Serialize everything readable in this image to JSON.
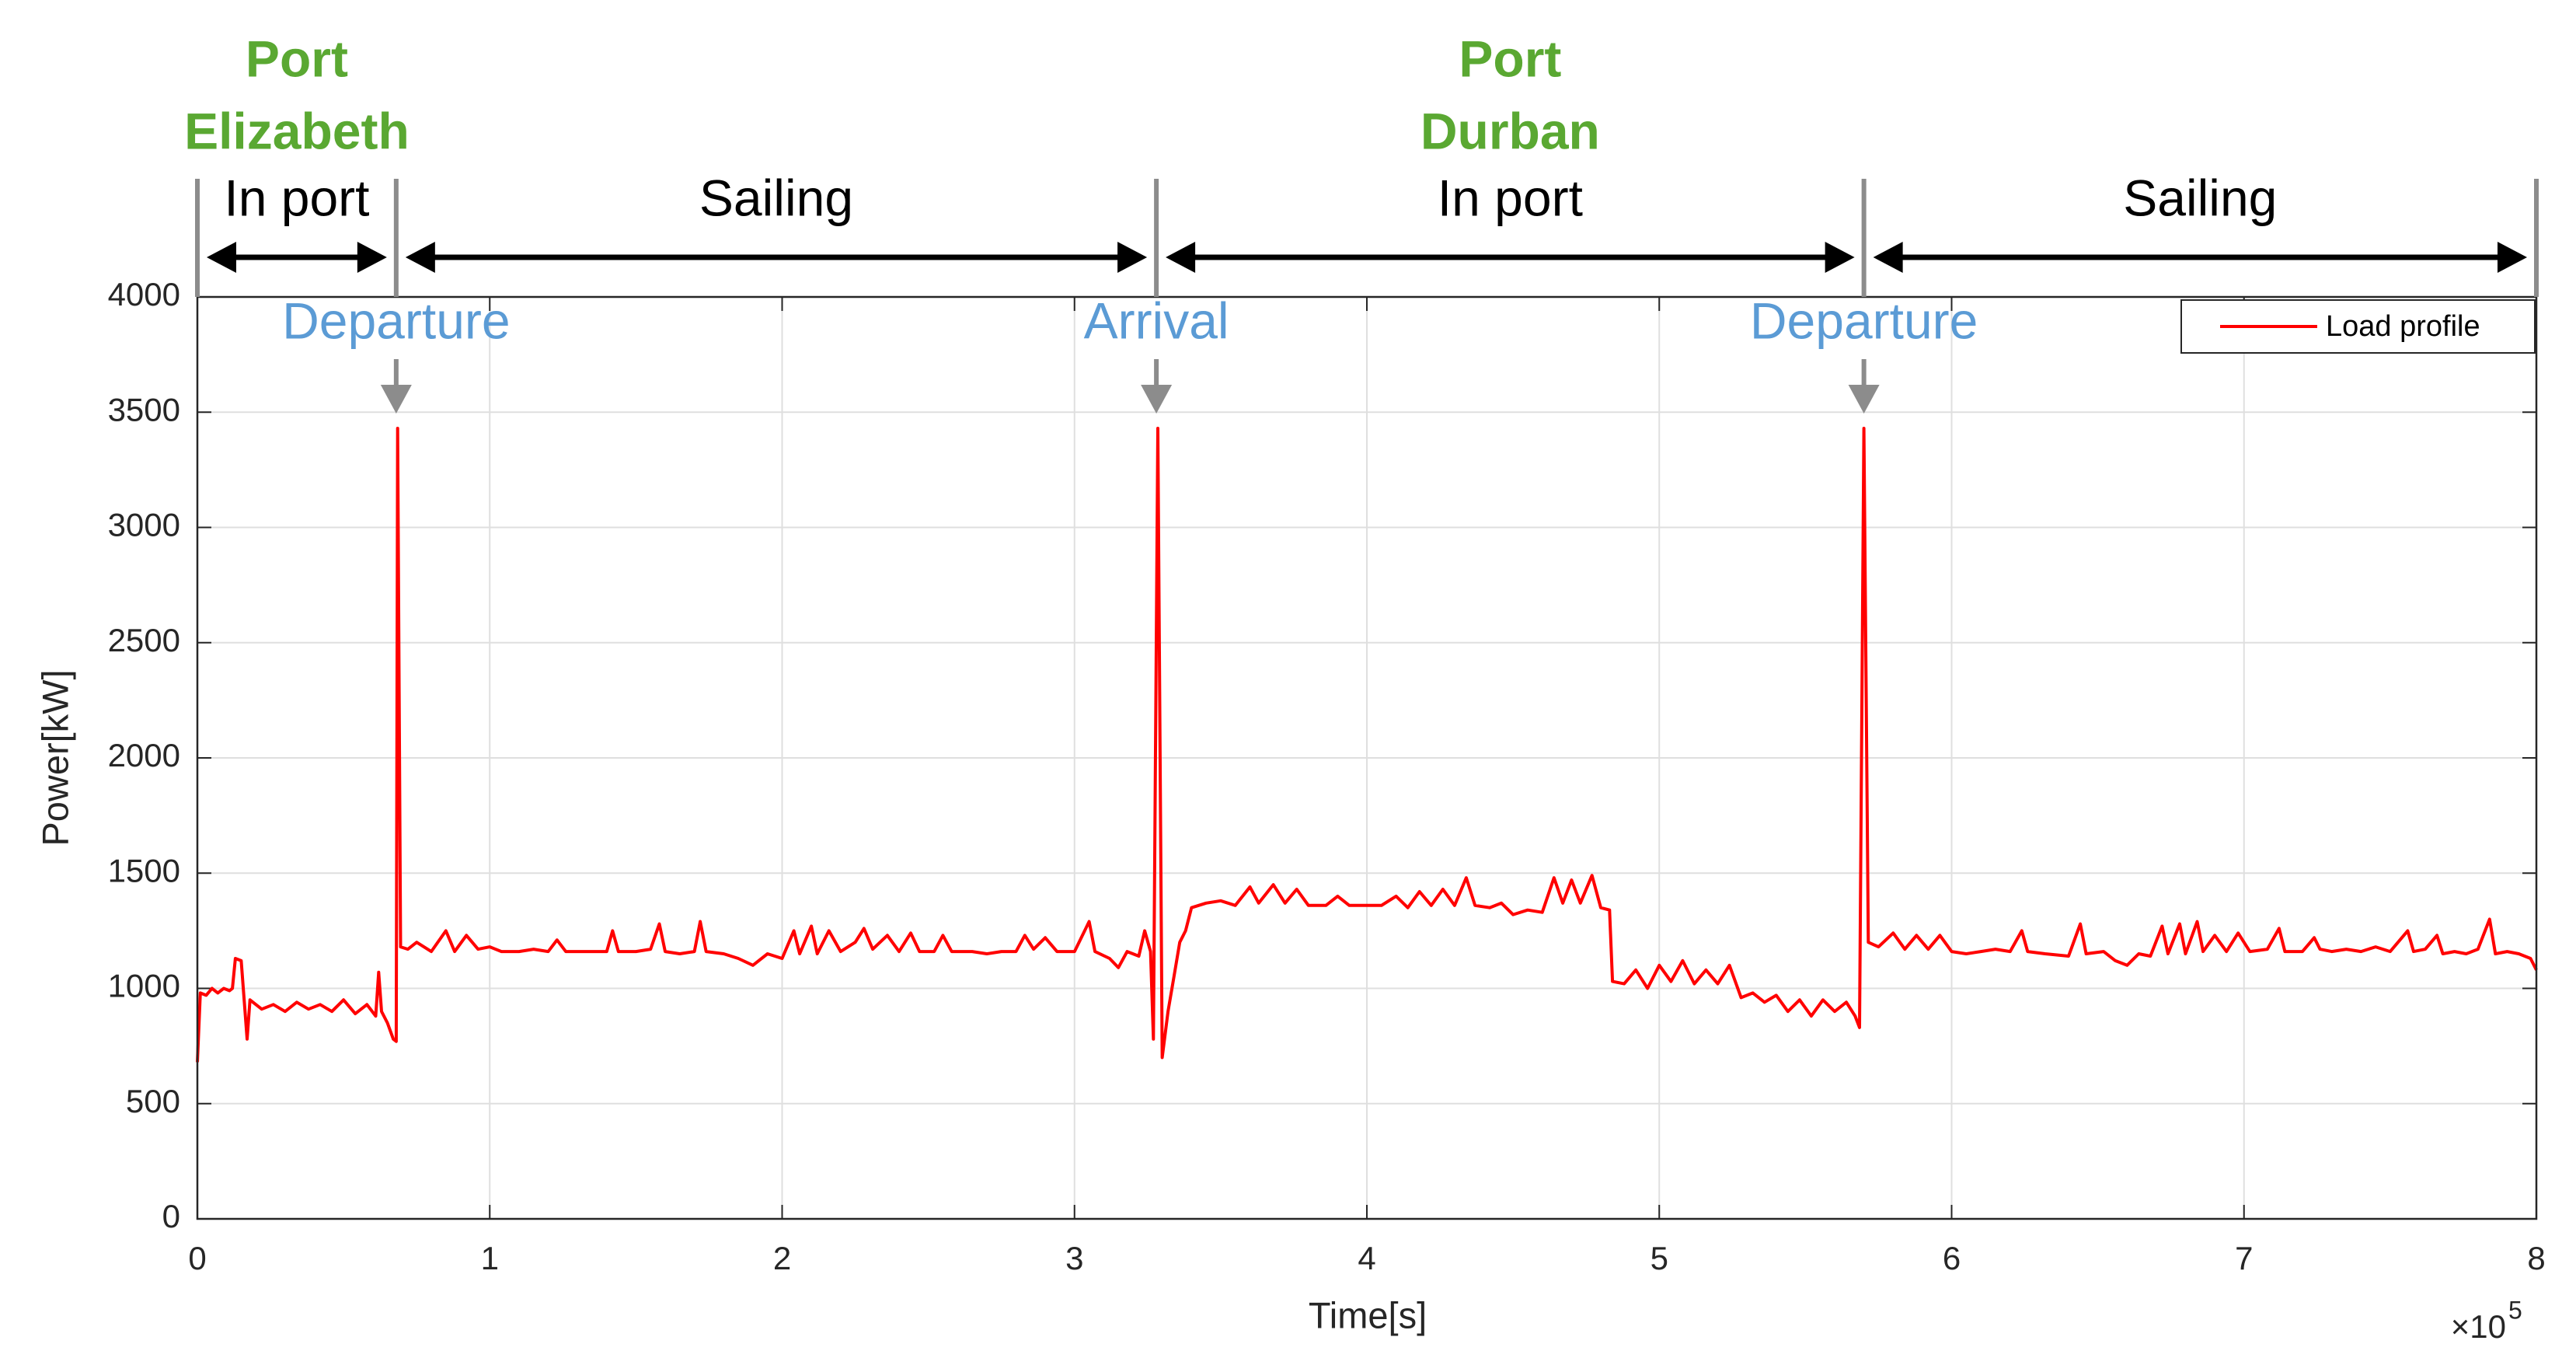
{
  "chart_data": {
    "type": "line",
    "xlabel": "Time[s]",
    "ylabel": "Power[kW]",
    "x_multiplier": {
      "base": "×10",
      "exponent": "5"
    },
    "xlim": [
      0,
      800000
    ],
    "ylim": [
      0,
      4000
    ],
    "xticks": [
      {
        "value": 0,
        "label": "0"
      },
      {
        "value": 100000,
        "label": "1"
      },
      {
        "value": 200000,
        "label": "2"
      },
      {
        "value": 300000,
        "label": "3"
      },
      {
        "value": 400000,
        "label": "4"
      },
      {
        "value": 500000,
        "label": "5"
      },
      {
        "value": 600000,
        "label": "6"
      },
      {
        "value": 700000,
        "label": "7"
      },
      {
        "value": 800000,
        "label": "8"
      }
    ],
    "yticks": [
      0,
      500,
      1000,
      1500,
      2000,
      2500,
      3000,
      3500,
      4000
    ],
    "grid": true,
    "legend": "northeast",
    "phases": [
      {
        "label": "In port",
        "start": 0,
        "end": 68000,
        "port": [
          "Port",
          "Elizabeth"
        ]
      },
      {
        "label": "Sailing",
        "start": 68000,
        "end": 328000
      },
      {
        "label": "In port",
        "start": 328000,
        "end": 570000,
        "port": [
          "Port",
          "Durban"
        ]
      },
      {
        "label": "Sailing",
        "start": 570000,
        "end": 800000
      }
    ],
    "events": [
      {
        "label": "Departure",
        "x": 68000
      },
      {
        "label": "Arrival",
        "x": 328000
      },
      {
        "label": "Departure",
        "x": 570000
      }
    ],
    "x": [
      0,
      1000,
      3000,
      5000,
      7000,
      9000,
      11000,
      12000,
      13000,
      15000,
      16000,
      17000,
      18000,
      22000,
      26000,
      30000,
      34000,
      38000,
      42000,
      46000,
      50000,
      54000,
      58000,
      61000,
      62000,
      63000,
      65000,
      67000,
      68000,
      68500,
      69500,
      72000,
      75000,
      80000,
      85000,
      88000,
      92000,
      96000,
      100000,
      104000,
      110000,
      115000,
      120000,
      123000,
      126000,
      132000,
      140000,
      142000,
      144000,
      150000,
      155000,
      158000,
      160000,
      165000,
      170000,
      172000,
      174000,
      180000,
      185000,
      190000,
      195000,
      200000,
      204000,
      206000,
      210000,
      212000,
      216000,
      220000,
      225000,
      228000,
      231000,
      236000,
      240000,
      244000,
      247000,
      252000,
      255000,
      258000,
      265000,
      270000,
      275000,
      280000,
      283000,
      286000,
      290000,
      294000,
      300000,
      305000,
      307000,
      312000,
      315000,
      318000,
      322000,
      324000,
      326000,
      327000,
      328500,
      330000,
      332000,
      334000,
      336000,
      338000,
      340000,
      345000,
      350000,
      355000,
      360000,
      363000,
      368000,
      372000,
      376000,
      380000,
      386000,
      390000,
      394000,
      400000,
      405000,
      410000,
      414000,
      418000,
      422000,
      426000,
      430000,
      434000,
      437000,
      442000,
      446000,
      450000,
      455000,
      460000,
      464000,
      467000,
      470000,
      473000,
      477000,
      480000,
      483000,
      484000,
      488000,
      492000,
      496000,
      500000,
      504000,
      508000,
      512000,
      516000,
      520000,
      524000,
      528000,
      532000,
      536000,
      540000,
      544000,
      548000,
      552000,
      556000,
      560000,
      564000,
      567000,
      568500,
      570000,
      571500,
      575000,
      580000,
      584000,
      588000,
      592000,
      596000,
      600000,
      605000,
      610000,
      615000,
      620000,
      624000,
      626000,
      632000,
      640000,
      644000,
      646000,
      652000,
      656000,
      660000,
      664000,
      668000,
      672000,
      674000,
      678000,
      680000,
      684000,
      686000,
      690000,
      694000,
      698000,
      702000,
      708000,
      712000,
      714000,
      720000,
      724000,
      726000,
      730000,
      735000,
      740000,
      745000,
      750000,
      756000,
      758000,
      762000,
      766000,
      768000,
      772000,
      776000,
      780000,
      784000,
      786000,
      790000,
      794000,
      798000,
      800000
    ],
    "series": [
      {
        "name": "Load profile",
        "color": "#ff0000",
        "values": [
          680,
          980,
          970,
          1000,
          980,
          1000,
          990,
          1000,
          1130,
          1120,
          950,
          780,
          950,
          910,
          930,
          900,
          940,
          910,
          930,
          900,
          950,
          890,
          930,
          880,
          1070,
          900,
          850,
          780,
          770,
          3430,
          1180,
          1170,
          1200,
          1160,
          1250,
          1160,
          1230,
          1170,
          1180,
          1160,
          1160,
          1170,
          1160,
          1210,
          1160,
          1160,
          1160,
          1250,
          1160,
          1160,
          1170,
          1280,
          1160,
          1150,
          1160,
          1290,
          1160,
          1150,
          1130,
          1100,
          1150,
          1130,
          1250,
          1150,
          1270,
          1150,
          1250,
          1160,
          1200,
          1260,
          1170,
          1230,
          1160,
          1240,
          1160,
          1160,
          1230,
          1160,
          1160,
          1150,
          1160,
          1160,
          1230,
          1170,
          1220,
          1160,
          1160,
          1290,
          1160,
          1130,
          1090,
          1160,
          1140,
          1250,
          1160,
          780,
          3430,
          700,
          900,
          1050,
          1200,
          1250,
          1350,
          1370,
          1380,
          1360,
          1440,
          1370,
          1450,
          1370,
          1430,
          1360,
          1360,
          1400,
          1360,
          1360,
          1360,
          1400,
          1350,
          1420,
          1360,
          1430,
          1360,
          1480,
          1360,
          1350,
          1370,
          1320,
          1340,
          1330,
          1480,
          1370,
          1470,
          1370,
          1490,
          1350,
          1340,
          1030,
          1020,
          1080,
          1000,
          1100,
          1030,
          1120,
          1020,
          1080,
          1020,
          1100,
          960,
          980,
          940,
          970,
          900,
          950,
          880,
          950,
          900,
          940,
          880,
          830,
          3430,
          1200,
          1180,
          1240,
          1170,
          1230,
          1170,
          1230,
          1160,
          1150,
          1160,
          1170,
          1160,
          1250,
          1160,
          1150,
          1140,
          1280,
          1150,
          1160,
          1120,
          1100,
          1150,
          1140,
          1270,
          1150,
          1280,
          1150,
          1290,
          1160,
          1230,
          1160,
          1240,
          1160,
          1170,
          1260,
          1160,
          1160,
          1220,
          1170,
          1160,
          1170,
          1160,
          1180,
          1160,
          1250,
          1160,
          1170,
          1230,
          1150,
          1160,
          1150,
          1170,
          1300,
          1150,
          1160,
          1150,
          1130,
          1080
        ]
      }
    ]
  }
}
